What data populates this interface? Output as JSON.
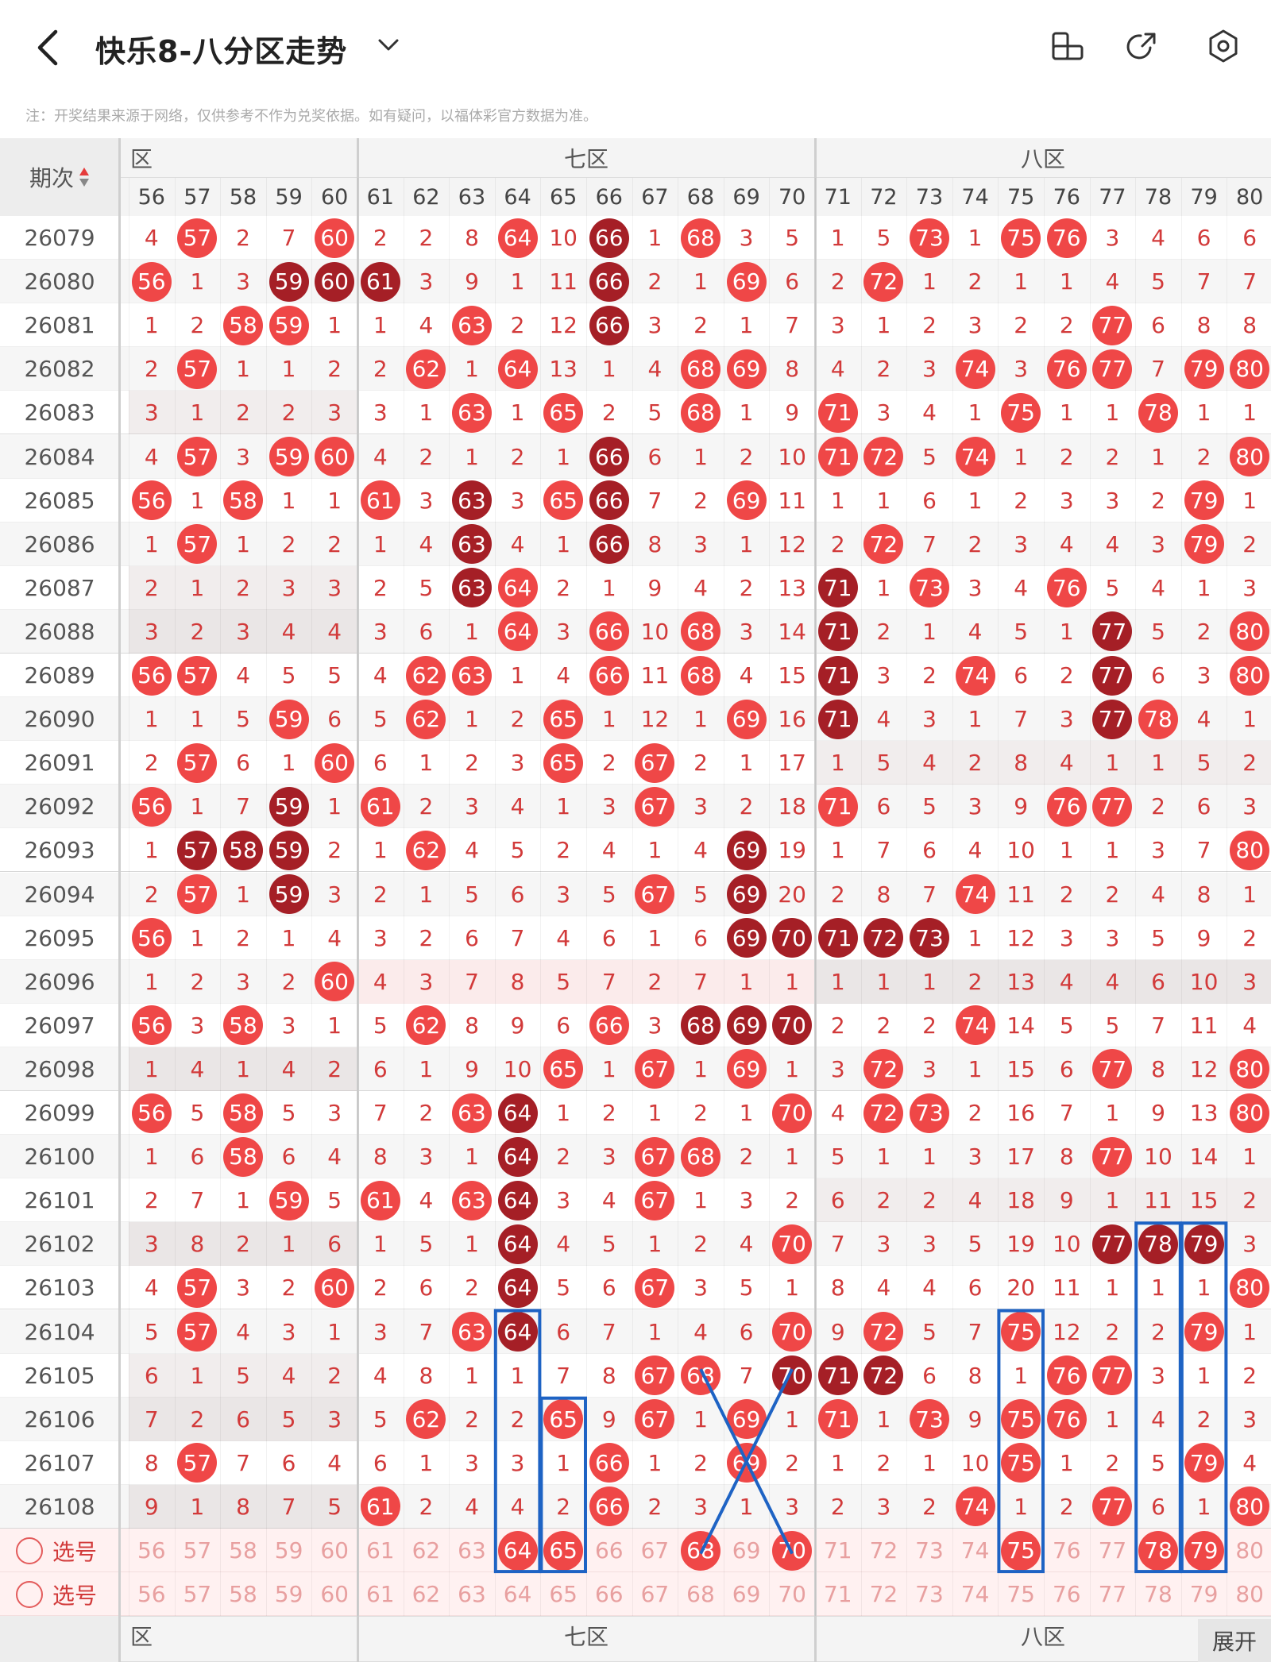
{
  "header": {
    "title": "快乐8-八分区走势",
    "back_icon": "chevron-left-icon",
    "dropdown_icon": "chevron-down-icon",
    "actions": [
      "screen-rotate-icon",
      "share-icon",
      "settings-icon"
    ]
  },
  "notice": "注：开奖结果来源于网络，仅供参考不作为兑奖依据。如有疑问，以福体彩官方数据为准。",
  "table": {
    "period_header": "期次",
    "zones": [
      "六区",
      "七区",
      "八区"
    ],
    "zone_visible_labels": [
      "区",
      "七区",
      "八区"
    ],
    "numbers": [
      "56",
      "57",
      "58",
      "59",
      "60",
      "61",
      "62",
      "63",
      "64",
      "65",
      "66",
      "67",
      "68",
      "69",
      "70",
      "71",
      "72",
      "73",
      "74",
      "75",
      "76",
      "77",
      "78",
      "79",
      "80"
    ],
    "rows": [
      {
        "period": "26079",
        "cells": [
          "4",
          "57*",
          "2",
          "7",
          "60*",
          "2",
          "2",
          "8",
          "64*",
          "10",
          "66#",
          "1",
          "68*",
          "3",
          "5",
          "1",
          "5",
          "73*",
          "1",
          "75*",
          "76*",
          "3",
          "4",
          "6",
          "6"
        ]
      },
      {
        "period": "26080",
        "cells": [
          "56*",
          "1",
          "3",
          "59#",
          "60#",
          "61#",
          "3",
          "9",
          "1",
          "11",
          "66#",
          "2",
          "1",
          "69*",
          "6",
          "2",
          "72*",
          "1",
          "2",
          "1",
          "1",
          "4",
          "5",
          "7",
          "7"
        ]
      },
      {
        "period": "26081",
        "cells": [
          "1",
          "2",
          "58*",
          "59*",
          "1",
          "1",
          "4",
          "63*",
          "2",
          "12",
          "66#",
          "3",
          "2",
          "1",
          "7",
          "3",
          "1",
          "2",
          "3",
          "2",
          "2",
          "77*",
          "6",
          "8",
          "8"
        ]
      },
      {
        "period": "26082",
        "cells": [
          "2",
          "57*",
          "1",
          "1",
          "2",
          "2",
          "62*",
          "1",
          "64*",
          "13",
          "1",
          "4",
          "68*",
          "69*",
          "8",
          "4",
          "2",
          "3",
          "74*",
          "3",
          "76*",
          "77*",
          "7",
          "79*",
          "80*"
        ]
      },
      {
        "period": "26083",
        "cells": [
          "3",
          "1",
          "2",
          "2",
          "3",
          "3",
          "1",
          "63*",
          "1",
          "65*",
          "2",
          "5",
          "68*",
          "1",
          "9",
          "71*",
          "3",
          "4",
          "1",
          "75*",
          "1",
          "1",
          "78*",
          "1",
          "1"
        ]
      },
      {
        "period": "26084",
        "cells": [
          "4",
          "57*",
          "3",
          "59*",
          "60*",
          "4",
          "2",
          "1",
          "2",
          "1",
          "66#",
          "6",
          "1",
          "2",
          "10",
          "71*",
          "72*",
          "5",
          "74*",
          "1",
          "2",
          "2",
          "1",
          "2",
          "80*"
        ]
      },
      {
        "period": "26085",
        "cells": [
          "56*",
          "1",
          "58*",
          "1",
          "1",
          "61*",
          "3",
          "63#",
          "3",
          "65*",
          "66#",
          "7",
          "2",
          "69*",
          "11",
          "1",
          "1",
          "6",
          "1",
          "2",
          "3",
          "3",
          "2",
          "79*",
          "1"
        ]
      },
      {
        "period": "26086",
        "cells": [
          "1",
          "57*",
          "1",
          "2",
          "2",
          "1",
          "4",
          "63#",
          "4",
          "1",
          "66#",
          "8",
          "3",
          "1",
          "12",
          "2",
          "72*",
          "7",
          "2",
          "3",
          "4",
          "4",
          "3",
          "79*",
          "2"
        ]
      },
      {
        "period": "26087",
        "cells": [
          "2",
          "1",
          "2",
          "3",
          "3",
          "2",
          "5",
          "63#",
          "64*",
          "2",
          "1",
          "9",
          "4",
          "2",
          "13",
          "71#",
          "1",
          "73*",
          "3",
          "4",
          "76*",
          "5",
          "4",
          "1",
          "3"
        ]
      },
      {
        "period": "26088",
        "cells": [
          "3",
          "2",
          "3",
          "4",
          "4",
          "3",
          "6",
          "1",
          "64*",
          "3",
          "66*",
          "10",
          "68*",
          "3",
          "14",
          "71#",
          "2",
          "1",
          "4",
          "5",
          "1",
          "77#",
          "5",
          "2",
          "80*"
        ]
      },
      {
        "period": "26089",
        "cells": [
          "56*",
          "57*",
          "4",
          "5",
          "5",
          "4",
          "62*",
          "63*",
          "1",
          "4",
          "66*",
          "11",
          "68*",
          "4",
          "15",
          "71#",
          "3",
          "2",
          "74*",
          "6",
          "2",
          "77#",
          "6",
          "3",
          "80*"
        ]
      },
      {
        "period": "26090",
        "cells": [
          "1",
          "1",
          "5",
          "59*",
          "6",
          "5",
          "62*",
          "1",
          "2",
          "65*",
          "1",
          "12",
          "1",
          "69*",
          "16",
          "71#",
          "4",
          "3",
          "1",
          "7",
          "3",
          "77#",
          "78*",
          "4",
          "1"
        ]
      },
      {
        "period": "26091",
        "cells": [
          "2",
          "57*",
          "6",
          "1",
          "60*",
          "6",
          "1",
          "2",
          "3",
          "65*",
          "2",
          "67*",
          "2",
          "1",
          "17",
          "1",
          "5",
          "4",
          "2",
          "8",
          "4",
          "1",
          "1",
          "5",
          "2"
        ]
      },
      {
        "period": "26092",
        "cells": [
          "56*",
          "1",
          "7",
          "59#",
          "1",
          "61*",
          "2",
          "3",
          "4",
          "1",
          "3",
          "67*",
          "3",
          "2",
          "18",
          "71*",
          "6",
          "5",
          "3",
          "9",
          "76*",
          "77*",
          "2",
          "6",
          "3"
        ]
      },
      {
        "period": "26093",
        "cells": [
          "1",
          "57#",
          "58#",
          "59#",
          "2",
          "1",
          "62*",
          "4",
          "5",
          "2",
          "4",
          "1",
          "4",
          "69#",
          "19",
          "1",
          "7",
          "6",
          "4",
          "10",
          "1",
          "1",
          "3",
          "7",
          "80*"
        ]
      },
      {
        "period": "26094",
        "cells": [
          "2",
          "57*",
          "1",
          "59#",
          "3",
          "2",
          "1",
          "5",
          "6",
          "3",
          "5",
          "67*",
          "5",
          "69#",
          "20",
          "2",
          "8",
          "7",
          "74*",
          "11",
          "2",
          "2",
          "4",
          "8",
          "1"
        ]
      },
      {
        "period": "26095",
        "cells": [
          "56*",
          "1",
          "2",
          "1",
          "4",
          "3",
          "2",
          "6",
          "7",
          "4",
          "6",
          "1",
          "6",
          "69#",
          "70#",
          "71#",
          "72#",
          "73#",
          "1",
          "12",
          "3",
          "3",
          "5",
          "9",
          "2"
        ]
      },
      {
        "period": "26096",
        "cells": [
          "1",
          "2",
          "3",
          "2",
          "60*",
          "4",
          "3",
          "7",
          "8",
          "5",
          "7",
          "2",
          "7",
          "1",
          "1",
          "1",
          "1",
          "1",
          "2",
          "13",
          "4",
          "4",
          "6",
          "10",
          "3"
        ]
      },
      {
        "period": "26097",
        "cells": [
          "56*",
          "3",
          "58*",
          "3",
          "1",
          "5",
          "62*",
          "8",
          "9",
          "6",
          "66*",
          "3",
          "68#",
          "69#",
          "70#",
          "2",
          "2",
          "2",
          "74*",
          "14",
          "5",
          "5",
          "7",
          "11",
          "4"
        ]
      },
      {
        "period": "26098",
        "cells": [
          "1",
          "4",
          "1",
          "4",
          "2",
          "6",
          "1",
          "9",
          "10",
          "65*",
          "1",
          "67*",
          "1",
          "69*",
          "1",
          "3",
          "72*",
          "3",
          "1",
          "15",
          "6",
          "77*",
          "8",
          "12",
          "80*"
        ]
      },
      {
        "period": "26099",
        "cells": [
          "56*",
          "5",
          "58*",
          "5",
          "3",
          "7",
          "2",
          "63*",
          "64#",
          "1",
          "2",
          "1",
          "2",
          "1",
          "70*",
          "4",
          "72*",
          "73*",
          "2",
          "16",
          "7",
          "1",
          "9",
          "13",
          "80*"
        ]
      },
      {
        "period": "26100",
        "cells": [
          "1",
          "6",
          "58*",
          "6",
          "4",
          "8",
          "3",
          "1",
          "64#",
          "2",
          "3",
          "67*",
          "68*",
          "2",
          "1",
          "5",
          "1",
          "1",
          "3",
          "17",
          "8",
          "77*",
          "10",
          "14",
          "1"
        ]
      },
      {
        "period": "26101",
        "cells": [
          "2",
          "7",
          "1",
          "59*",
          "5",
          "61*",
          "4",
          "63*",
          "64#",
          "3",
          "4",
          "67*",
          "1",
          "3",
          "2",
          "6",
          "2",
          "2",
          "4",
          "18",
          "9",
          "1",
          "11",
          "15",
          "2"
        ]
      },
      {
        "period": "26102",
        "cells": [
          "3",
          "8",
          "2",
          "1",
          "6",
          "1",
          "5",
          "1",
          "64#",
          "4",
          "5",
          "1",
          "2",
          "4",
          "70*",
          "7",
          "3",
          "3",
          "5",
          "19",
          "10",
          "77#",
          "78#",
          "79#",
          "3"
        ]
      },
      {
        "period": "26103",
        "cells": [
          "4",
          "57*",
          "3",
          "2",
          "60*",
          "2",
          "6",
          "2",
          "64#",
          "5",
          "6",
          "67*",
          "3",
          "5",
          "1",
          "8",
          "4",
          "4",
          "6",
          "20",
          "11",
          "1",
          "1",
          "1",
          "80*"
        ]
      },
      {
        "period": "26104",
        "cells": [
          "5",
          "57*",
          "4",
          "3",
          "1",
          "3",
          "7",
          "63*",
          "64#",
          "6",
          "7",
          "1",
          "4",
          "6",
          "70*",
          "9",
          "72*",
          "5",
          "7",
          "75*",
          "12",
          "2",
          "2",
          "79*",
          "1"
        ]
      },
      {
        "period": "26105",
        "cells": [
          "6",
          "1",
          "5",
          "4",
          "2",
          "4",
          "8",
          "1",
          "1",
          "7",
          "8",
          "67*",
          "68*",
          "7",
          "70#",
          "71#",
          "72#",
          "6",
          "8",
          "1",
          "76*",
          "77*",
          "3",
          "1",
          "2"
        ]
      },
      {
        "period": "26106",
        "cells": [
          "7",
          "2",
          "6",
          "5",
          "3",
          "5",
          "62*",
          "2",
          "2",
          "65*",
          "9",
          "67*",
          "1",
          "69*",
          "1",
          "71*",
          "1",
          "73*",
          "9",
          "75*",
          "76*",
          "1",
          "4",
          "2",
          "3"
        ]
      },
      {
        "period": "26107",
        "cells": [
          "8",
          "57*",
          "7",
          "6",
          "4",
          "6",
          "1",
          "3",
          "3",
          "1",
          "66*",
          "1",
          "2",
          "69*",
          "2",
          "1",
          "2",
          "1",
          "10",
          "75*",
          "1",
          "2",
          "5",
          "79*",
          "4"
        ]
      },
      {
        "period": "26108",
        "cells": [
          "9",
          "1",
          "8",
          "7",
          "5",
          "61*",
          "2",
          "4",
          "4",
          "2",
          "66*",
          "2",
          "3",
          "1",
          "3",
          "2",
          "3",
          "2",
          "74*",
          "1",
          "2",
          "77*",
          "6",
          "1",
          "80*"
        ]
      }
    ],
    "select_rows": [
      {
        "label": "选号",
        "balls": [
          "64",
          "65",
          "68",
          "70",
          "75",
          "78",
          "79"
        ]
      },
      {
        "label": "选号",
        "balls": []
      }
    ],
    "expand_label": "展开"
  },
  "colors": {
    "ball_red": "#ef4747",
    "ball_dark": "#a51f26",
    "text_red": "#d23a3a",
    "annotation_blue": "#1e63c4"
  }
}
